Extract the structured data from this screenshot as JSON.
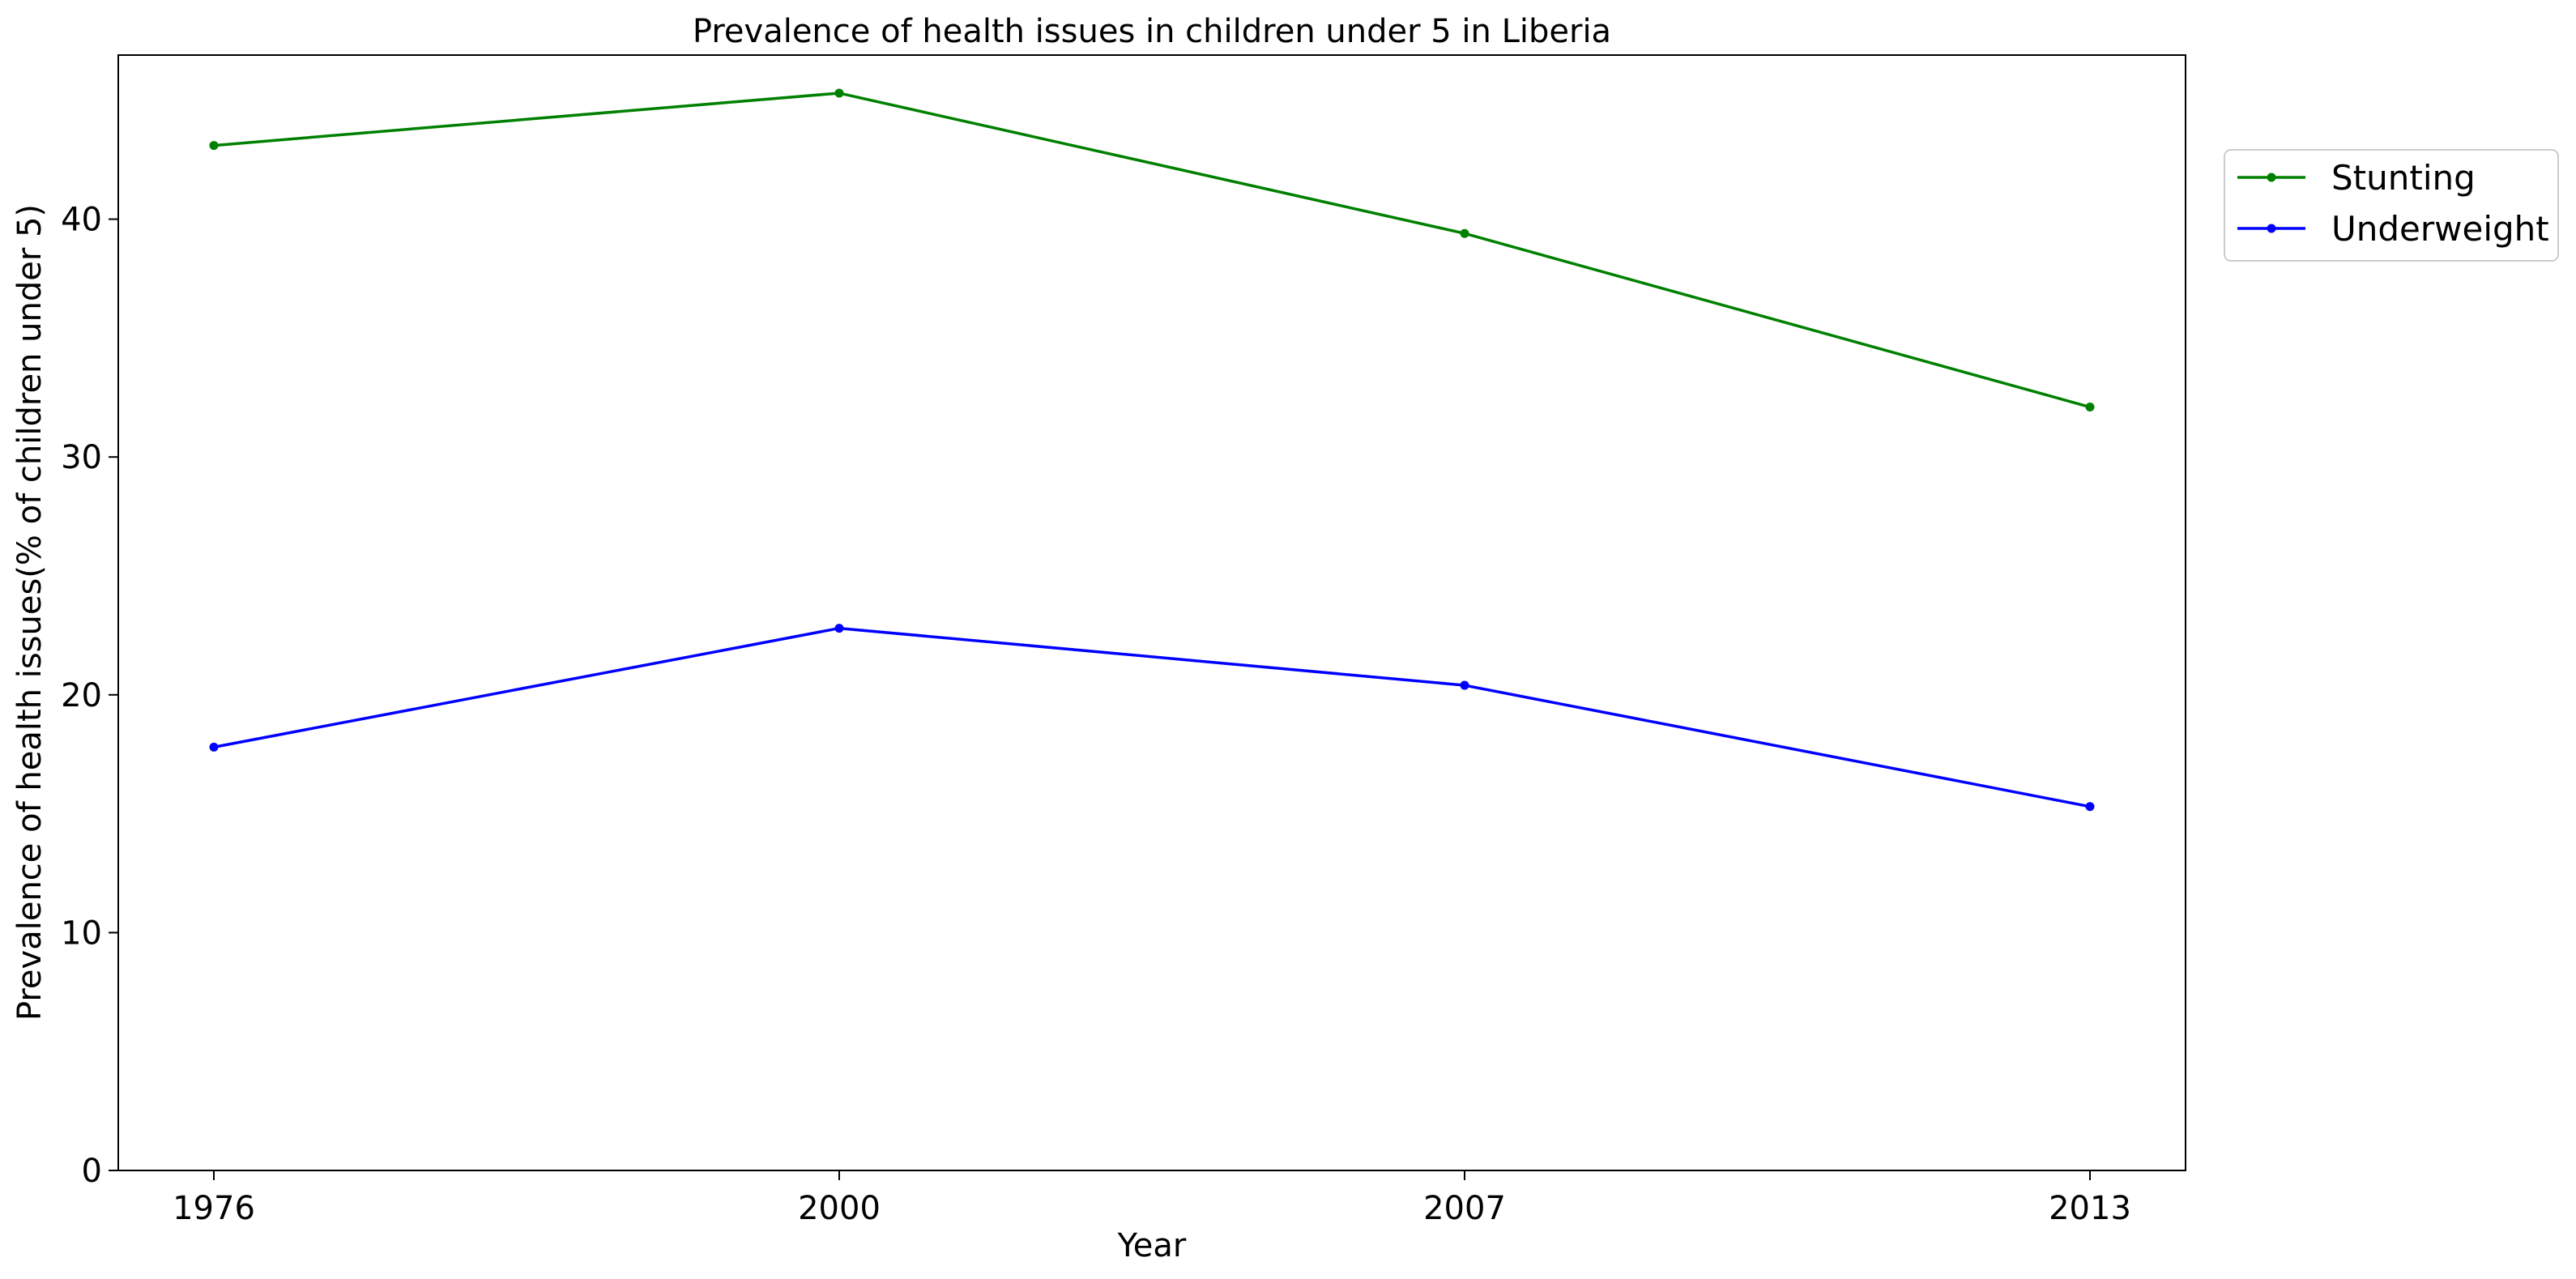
{
  "chart_data": {
    "type": "line",
    "title": "Prevalence of health issues in children under 5 in Liberia",
    "xlabel": "Year",
    "ylabel": "Prevalence of health issues(% of children under 5)",
    "categories": [
      "1976",
      "2000",
      "2007",
      "2013"
    ],
    "series": [
      {
        "name": "Stunting",
        "values": [
          43.1,
          45.3,
          39.4,
          32.1
        ],
        "color": "#008000"
      },
      {
        "name": "Underweight",
        "values": [
          17.8,
          22.8,
          20.4,
          15.3
        ],
        "color": "#0000ff"
      }
    ],
    "ylim": [
      0,
      46.9
    ],
    "yticks": [
      0,
      10,
      20,
      30,
      40
    ],
    "grid": false,
    "legend_position": "outside upper right",
    "marker": "dot"
  }
}
